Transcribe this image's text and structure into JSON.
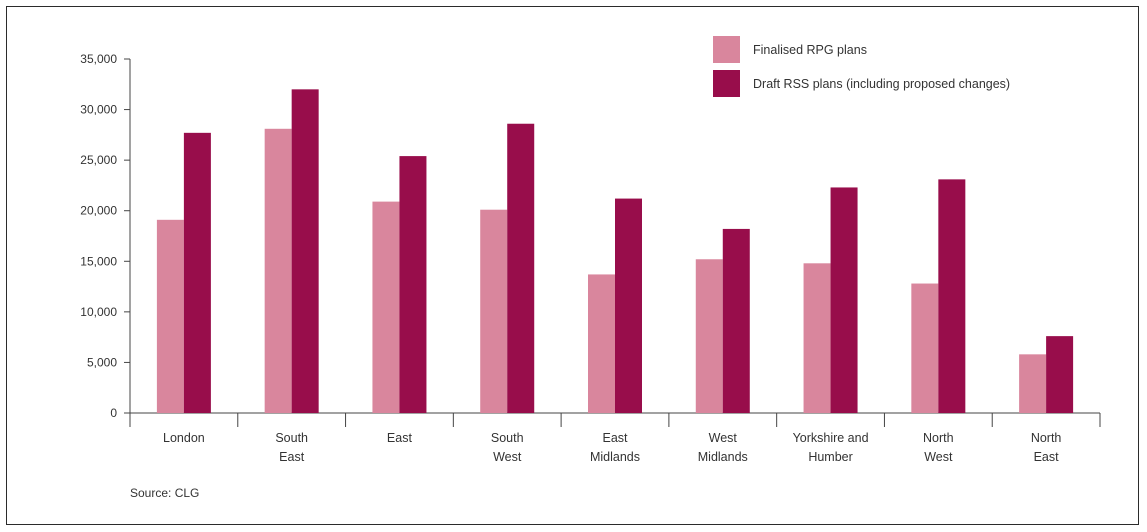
{
  "chart_data": {
    "type": "bar",
    "title": "",
    "xlabel": "",
    "ylabel": "",
    "ylim": [
      0,
      35000
    ],
    "yticks": [
      0,
      5000,
      10000,
      15000,
      20000,
      25000,
      30000,
      35000
    ],
    "ytick_labels": [
      "0",
      "5,000",
      "10,000",
      "15,000",
      "20,000",
      "25,000",
      "30,000",
      "35,000"
    ],
    "grid": false,
    "legend_position": "top-right",
    "categories": [
      [
        "London"
      ],
      [
        "South",
        "East"
      ],
      [
        "East"
      ],
      [
        "South",
        "West"
      ],
      [
        "East",
        "Midlands"
      ],
      [
        "West",
        "Midlands"
      ],
      [
        "Yorkshire and",
        "Humber"
      ],
      [
        "North",
        "West"
      ],
      [
        "North",
        "East"
      ]
    ],
    "series": [
      {
        "name": "Finalised RPG plans",
        "color": "#d9869d",
        "values": [
          19100,
          28100,
          20900,
          20100,
          13700,
          15200,
          14800,
          12800,
          5800
        ]
      },
      {
        "name": "Draft RSS plans (including proposed changes)",
        "color": "#980d4b",
        "values": [
          27700,
          32000,
          25400,
          28600,
          21200,
          18200,
          22300,
          23100,
          7600
        ]
      }
    ],
    "source": "Source: CLG"
  }
}
